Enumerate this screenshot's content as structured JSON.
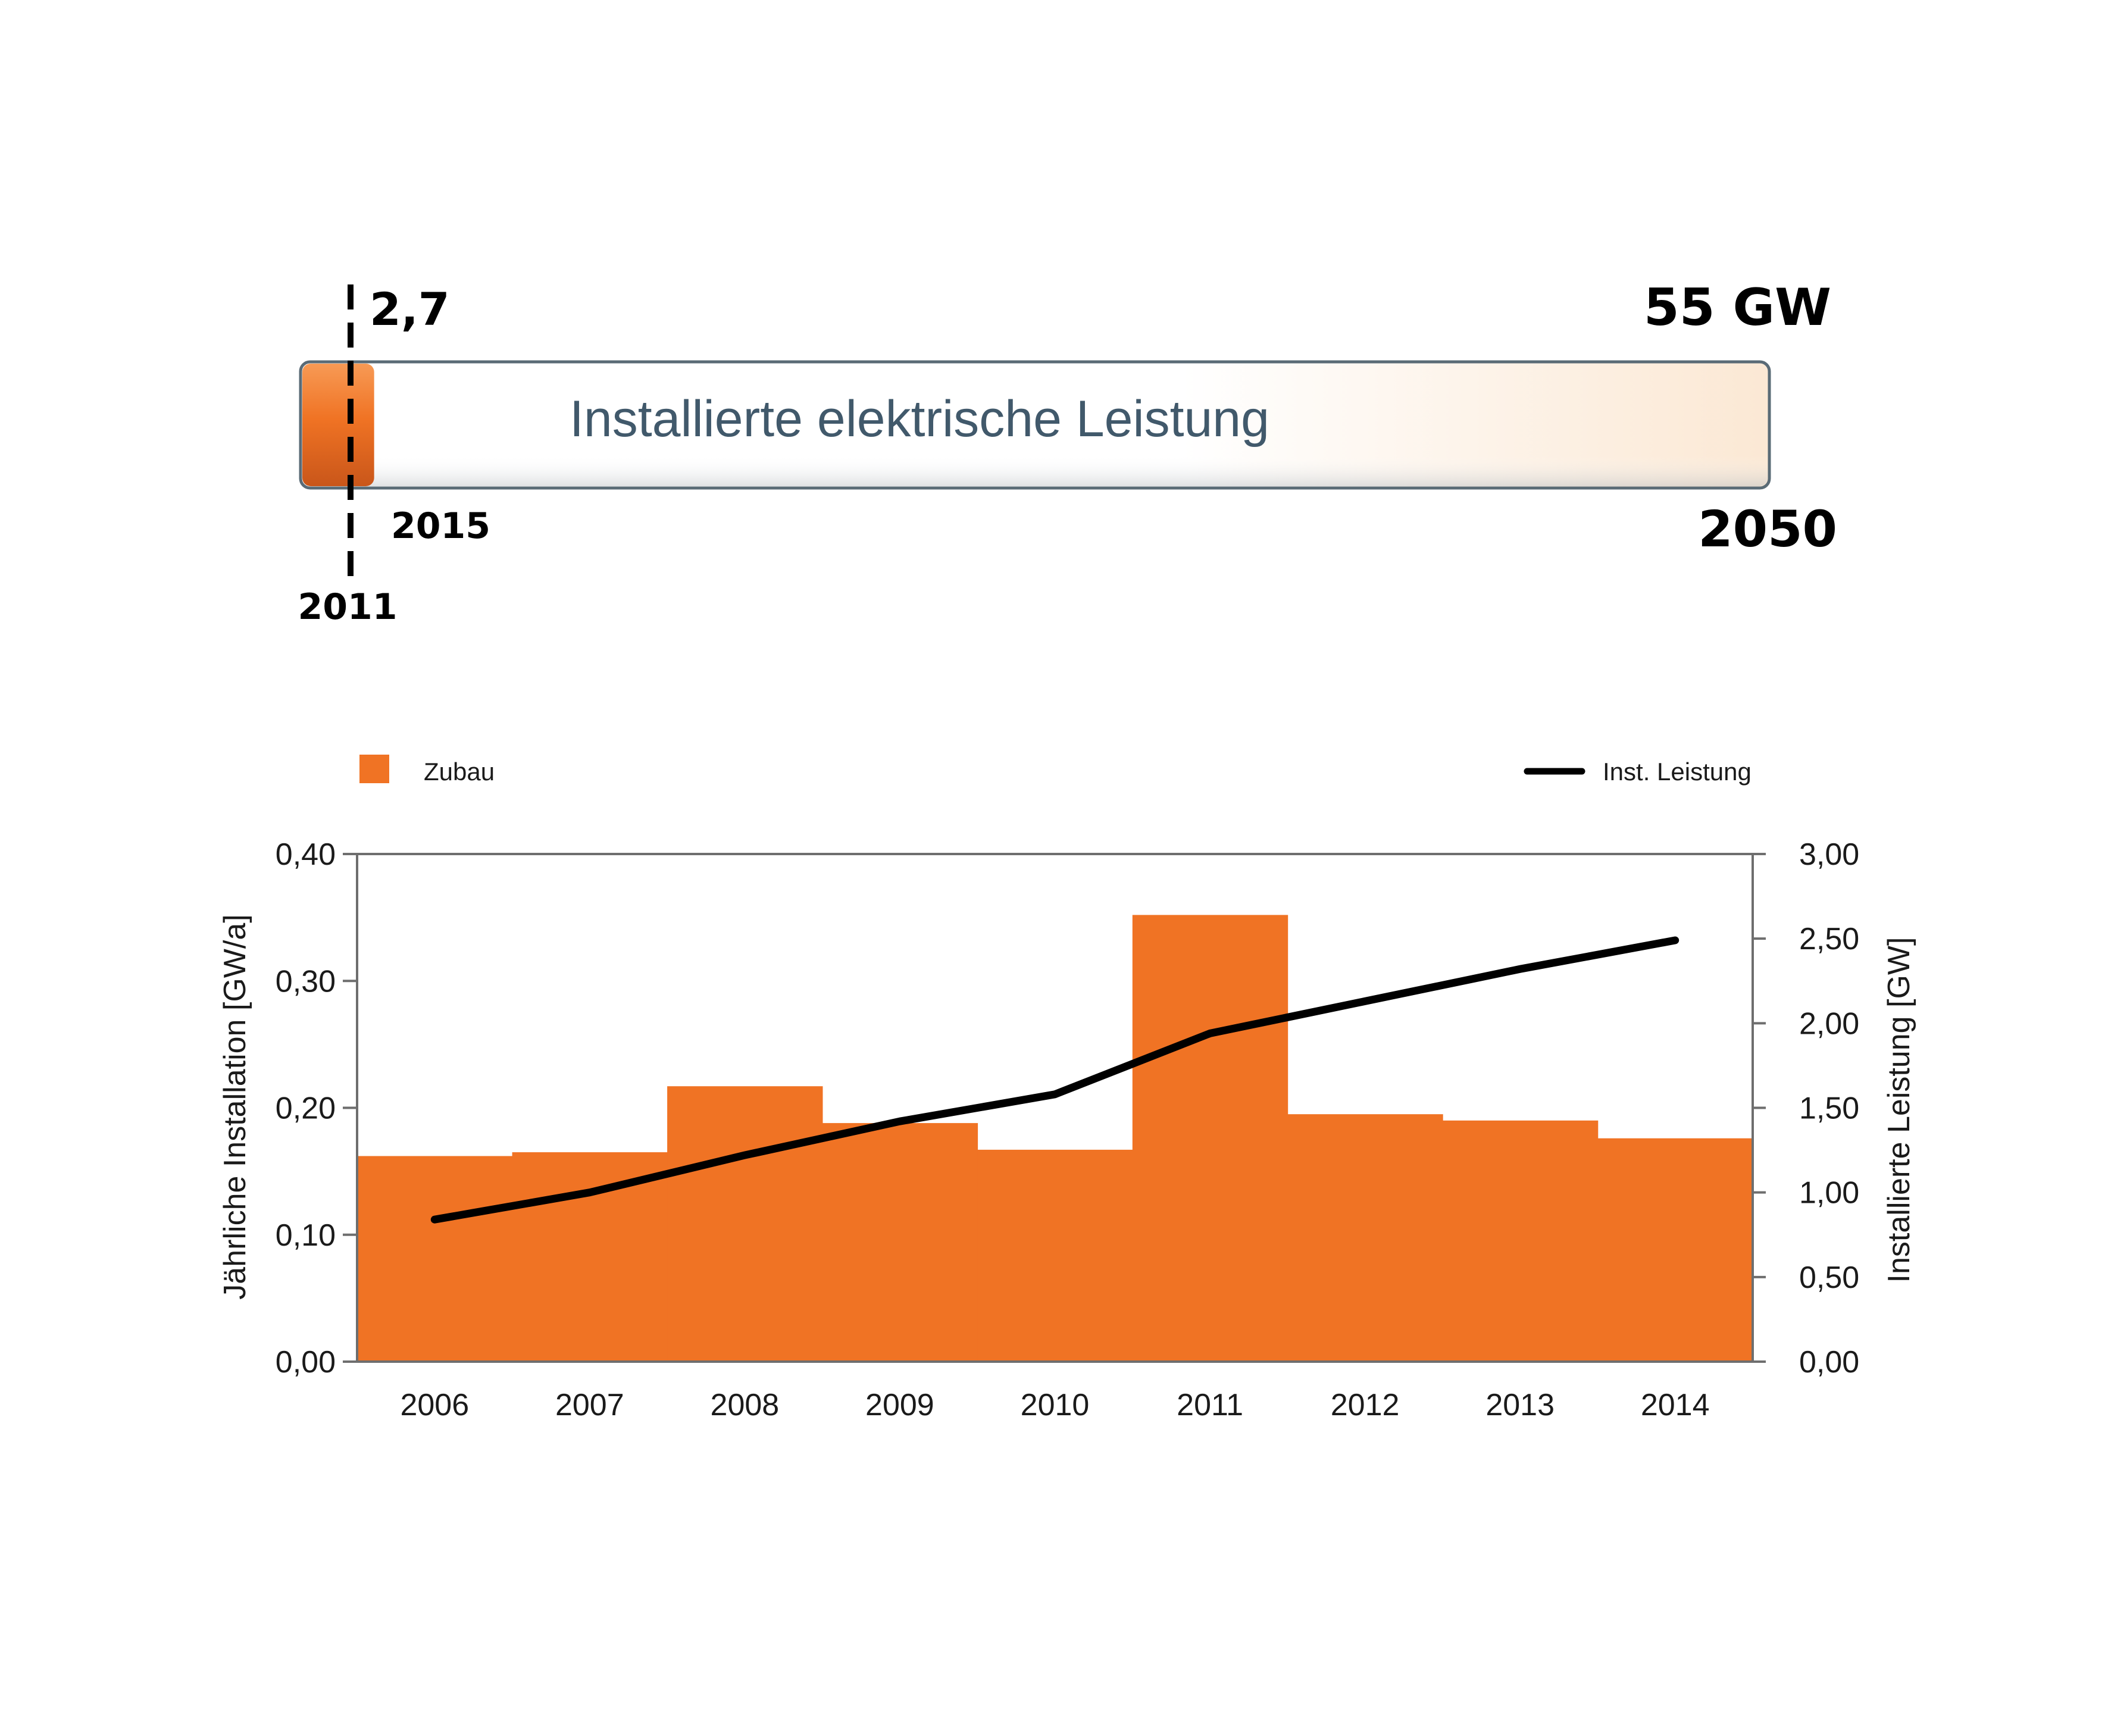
{
  "progress": {
    "title": "Installierte elektrische Leistung",
    "current_value_label": "2,7",
    "target_value_label": "55 GW",
    "start_year_label": "2011",
    "current_year_label": "2015",
    "end_year_label": "2050",
    "current_fraction": 0.049,
    "colors": {
      "fill": "#f07324",
      "track_border": "#5a6b76",
      "title": "#41596b"
    }
  },
  "chart_data": {
    "type": "bar",
    "categories": [
      "2006",
      "2007",
      "2008",
      "2009",
      "2010",
      "2011",
      "2012",
      "2013",
      "2014"
    ],
    "series": [
      {
        "name": "Zubau",
        "type": "bar",
        "axis": "left",
        "color": "#f07324",
        "values": [
          0.162,
          0.165,
          0.217,
          0.188,
          0.167,
          0.352,
          0.195,
          0.19,
          0.176
        ]
      },
      {
        "name": "Inst. Leistung",
        "type": "line",
        "axis": "right",
        "color": "#000000",
        "values": [
          0.84,
          1.0,
          1.22,
          1.42,
          1.58,
          1.94,
          2.13,
          2.32,
          2.49
        ]
      }
    ],
    "left_axis": {
      "label": "Jährliche Installation [GW/a]",
      "ylim": [
        0,
        0.4
      ],
      "ticks": [
        "0,00",
        "0,10",
        "0,20",
        "0,30",
        "0,40"
      ]
    },
    "right_axis": {
      "label": "Installierte Leistung [GW]",
      "ylim": [
        0,
        3
      ],
      "ticks": [
        "0,00",
        "0,50",
        "1,00",
        "1,50",
        "2,00",
        "2,50",
        "3,00"
      ]
    },
    "legend": {
      "placement": "top",
      "items": [
        "Zubau",
        "Inst. Leistung"
      ]
    },
    "grid": false
  }
}
